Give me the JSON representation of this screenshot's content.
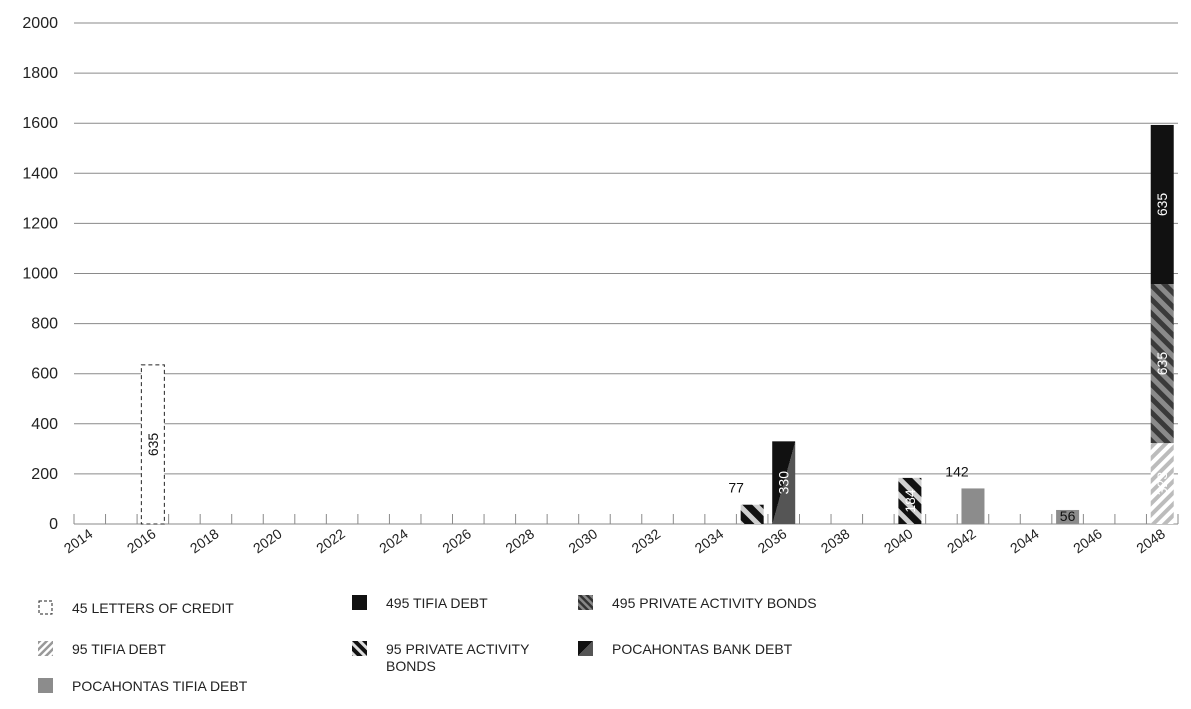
{
  "chart_data": {
    "type": "bar",
    "stacked": true,
    "title": "",
    "xlabel": "",
    "ylabel": "",
    "ylim": [
      0,
      2000
    ],
    "yticks": [
      0,
      200,
      400,
      600,
      800,
      1000,
      1200,
      1400,
      1600,
      1800,
      2000
    ],
    "x_tick_labels": [
      "2014",
      "2016",
      "2018",
      "2020",
      "2022",
      "2024",
      "2026",
      "2028",
      "2030",
      "2032",
      "2034",
      "2036",
      "2038",
      "2040",
      "2042",
      "2044",
      "2046",
      "2048"
    ],
    "x_range": [
      2014,
      2049
    ],
    "grid": true,
    "legend_position": "bottom",
    "series": [
      {
        "name": "45 LETTERS OF CREDIT",
        "pattern": "dashed-outline",
        "color": "#ffffff",
        "points": [
          {
            "x": 2016,
            "y": 635,
            "label": "635"
          }
        ]
      },
      {
        "name": "495 TIFIA DEBT",
        "pattern": "solid",
        "color": "#111111",
        "points": [
          {
            "x": 2048,
            "y": 635,
            "label": "635"
          }
        ]
      },
      {
        "name": "495 PRIVATE ACTIVITY BONDS",
        "pattern": "diagonal-dark",
        "color": "#555555",
        "points": [
          {
            "x": 2048,
            "y": 635,
            "label": "635"
          }
        ]
      },
      {
        "name": "95 TIFIA DEBT",
        "pattern": "diagonal-light",
        "color": "#bbbbbb",
        "points": [
          {
            "x": 2048,
            "y": 323,
            "label": "323"
          },
          {
            "x": 2040,
            "y": 184,
            "label": ""
          }
        ]
      },
      {
        "name": "95 PRIVATE ACTIVITY BONDS",
        "pattern": "diagonal-bold",
        "color": "#111111",
        "points": [
          {
            "x": 2035,
            "y": 77,
            "label": "77"
          },
          {
            "x": 2040,
            "y": 184,
            "label": "184"
          }
        ]
      },
      {
        "name": "POCAHONTAS BANK DEBT",
        "pattern": "half-split",
        "color": "#333333",
        "points": [
          {
            "x": 2036,
            "y": 330,
            "label": "330"
          }
        ]
      },
      {
        "name": "POCAHONTAS TIFIA DEBT",
        "pattern": "solid-gray",
        "color": "#888888",
        "points": [
          {
            "x": 2042,
            "y": 142,
            "label": "142"
          },
          {
            "x": 2045,
            "y": 56,
            "label": "56"
          }
        ]
      }
    ]
  }
}
